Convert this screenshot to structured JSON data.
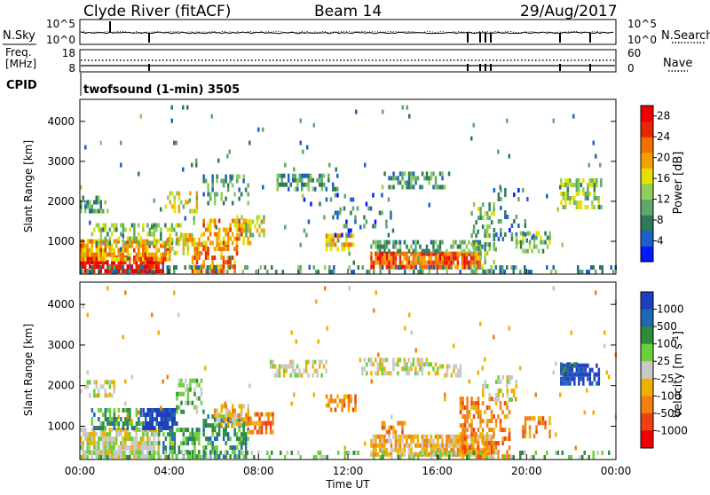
{
  "header": {
    "station": "Clyde River (fitACF)",
    "beam": "Beam 14",
    "date": "29/Aug/2017"
  },
  "noise_panel": {
    "left_label": "N.Sky",
    "left_top": "10^5",
    "left_bottom": "10^0",
    "right_top": "10^5",
    "right_bottom": "10^0",
    "right_label": "N.Search"
  },
  "freq_panel": {
    "left_label_1": "Freq.",
    "left_label_2": "[MHz]",
    "left_top": "18",
    "left_bottom": "8",
    "right_top": "60",
    "right_bottom": "0",
    "right_label": "Nave"
  },
  "cpid_panel": {
    "label": "CPID",
    "mode": "twofsound (1-min) 3505"
  },
  "colors": {
    "power_scale": [
      "#0018ff",
      "#1e5fc8",
      "#2f7a58",
      "#5ea86a",
      "#8fce58",
      "#e6e000",
      "#f6a000",
      "#f07000",
      "#e52800",
      "#ee0000"
    ],
    "velocity_scale": [
      "#1f3fbf",
      "#1f68b0",
      "#2e8a3c",
      "#6ad03a",
      "#c8c8c8",
      "#f0b000",
      "#f08010",
      "#f04010",
      "#ee0000"
    ]
  },
  "chart_data": [
    {
      "type": "heatmap",
      "name": "power",
      "ylabel": "Slant Range [km]",
      "ylim": [
        180,
        4550
      ],
      "yticks": [
        "1000",
        "2000",
        "3000",
        "4000"
      ],
      "xlim": [
        0,
        24
      ],
      "colorbar": {
        "label": "Power [dB]",
        "ticks": [
          "4",
          "8",
          "12",
          "16",
          "20",
          "24",
          "28"
        ],
        "range": [
          0,
          30
        ]
      },
      "regions": [
        {
          "t0": 0.0,
          "t1": 3.7,
          "r0": 200,
          "r1": 550,
          "v": 28,
          "d": 0.85
        },
        {
          "t0": 0.0,
          "t1": 4.0,
          "r0": 500,
          "r1": 1000,
          "v": 20,
          "d": 0.75
        },
        {
          "t0": 0.5,
          "t1": 4.5,
          "r0": 900,
          "r1": 1400,
          "v": 12,
          "d": 0.45
        },
        {
          "t0": 0.0,
          "t1": 1.2,
          "r0": 1700,
          "r1": 2100,
          "v": 10,
          "d": 0.5
        },
        {
          "t0": 3.8,
          "t1": 5.4,
          "r0": 650,
          "r1": 1100,
          "v": 18,
          "d": 0.6
        },
        {
          "t0": 5.0,
          "t1": 7.0,
          "r0": 200,
          "r1": 900,
          "v": 22,
          "d": 0.55
        },
        {
          "t0": 5.5,
          "t1": 7.6,
          "r0": 900,
          "r1": 1500,
          "v": 20,
          "d": 0.55
        },
        {
          "t0": 7.0,
          "t1": 8.2,
          "r0": 1100,
          "r1": 1600,
          "v": 15,
          "d": 0.5
        },
        {
          "t0": 3.8,
          "t1": 5.2,
          "r0": 1700,
          "r1": 2200,
          "v": 16,
          "d": 0.4
        },
        {
          "t0": 5.5,
          "t1": 7.5,
          "r0": 1900,
          "r1": 2600,
          "v": 10,
          "d": 0.3
        },
        {
          "t0": 8.8,
          "t1": 11.5,
          "r0": 2250,
          "r1": 2600,
          "v": 9,
          "d": 0.5
        },
        {
          "t0": 11.0,
          "t1": 12.2,
          "r0": 750,
          "r1": 1100,
          "v": 18,
          "d": 0.55
        },
        {
          "t0": 10.0,
          "t1": 14.0,
          "r0": 1100,
          "r1": 2200,
          "v": 6,
          "d": 0.12
        },
        {
          "t0": 13.5,
          "t1": 16.5,
          "r0": 2300,
          "r1": 2700,
          "v": 9,
          "d": 0.45
        },
        {
          "t0": 13.0,
          "t1": 17.9,
          "r0": 300,
          "r1": 700,
          "v": 24,
          "d": 0.85
        },
        {
          "t0": 13.0,
          "t1": 18.0,
          "r0": 700,
          "r1": 1000,
          "v": 10,
          "d": 0.5
        },
        {
          "t0": 17.5,
          "t1": 18.5,
          "r0": 200,
          "r1": 1900,
          "v": 12,
          "d": 0.35
        },
        {
          "t0": 18.5,
          "t1": 20.0,
          "r0": 1000,
          "r1": 2300,
          "v": 6,
          "d": 0.25
        },
        {
          "t0": 19.5,
          "t1": 21.0,
          "r0": 700,
          "r1": 1200,
          "v": 12,
          "d": 0.5
        },
        {
          "t0": 21.5,
          "t1": 23.3,
          "r0": 1800,
          "r1": 2500,
          "v": 13,
          "d": 0.6
        },
        {
          "t0": 0.0,
          "t1": 24.0,
          "r0": 180,
          "r1": 330,
          "v": 8,
          "d": 0.3
        },
        {
          "t0": 0.0,
          "t1": 24.0,
          "r0": 300,
          "r1": 4400,
          "v": 8,
          "d": 0.01
        }
      ]
    },
    {
      "type": "heatmap",
      "name": "velocity",
      "ylabel": "Slant Range [km]",
      "xlabel": "Time UT",
      "ylim": [
        180,
        4550
      ],
      "yticks": [
        "1000",
        "2000",
        "3000",
        "4000"
      ],
      "xlim": [
        0,
        24
      ],
      "xticks": [
        "00:00",
        "04:00",
        "08:00",
        "12:00",
        "16:00",
        "20:00",
        "00:00"
      ],
      "colorbar": {
        "label": "Velocity [m s^-1]",
        "ticks": [
          "1000",
          "500",
          "100",
          "25",
          "-25",
          "-100",
          "-500",
          "-1000"
        ]
      },
      "regions": [
        {
          "t0": 0.0,
          "t1": 3.5,
          "r0": 200,
          "r1": 900,
          "v": 4,
          "d": 0.8
        },
        {
          "t0": 0.0,
          "t1": 1.5,
          "r0": 1700,
          "r1": 2100,
          "v": 4,
          "d": 0.55
        },
        {
          "t0": 0.5,
          "t1": 2.8,
          "r0": 900,
          "r1": 1350,
          "v": 2,
          "d": 0.6
        },
        {
          "t0": 2.8,
          "t1": 4.3,
          "r0": 900,
          "r1": 1400,
          "v": 0,
          "d": 0.85
        },
        {
          "t0": 3.5,
          "t1": 5.3,
          "r0": 200,
          "r1": 900,
          "v": 2,
          "d": 0.55
        },
        {
          "t0": 4.3,
          "t1": 5.5,
          "r0": 1300,
          "r1": 2100,
          "v": 3,
          "d": 0.5
        },
        {
          "t0": 5.5,
          "t1": 7.5,
          "r0": 200,
          "r1": 1200,
          "v": 2,
          "d": 0.5
        },
        {
          "t0": 6.0,
          "t1": 7.5,
          "r0": 1000,
          "r1": 1500,
          "v": 5,
          "d": 0.6
        },
        {
          "t0": 7.5,
          "t1": 8.6,
          "r0": 800,
          "r1": 1300,
          "v": 6,
          "d": 0.6
        },
        {
          "t0": 8.5,
          "t1": 11.0,
          "r0": 2200,
          "r1": 2600,
          "v": 4,
          "d": 0.55
        },
        {
          "t0": 11.0,
          "t1": 12.3,
          "r0": 1350,
          "r1": 1750,
          "v": 6,
          "d": 0.6
        },
        {
          "t0": 12.5,
          "t1": 16.0,
          "r0": 2250,
          "r1": 2600,
          "v": 4,
          "d": 0.55
        },
        {
          "t0": 16.0,
          "t1": 17.0,
          "r0": 2200,
          "r1": 2500,
          "v": 4,
          "d": 0.5
        },
        {
          "t0": 13.0,
          "t1": 18.5,
          "r0": 250,
          "r1": 700,
          "v": 5,
          "d": 0.85
        },
        {
          "t0": 13.5,
          "t1": 14.5,
          "r0": 800,
          "r1": 1100,
          "v": 6,
          "d": 0.55
        },
        {
          "t0": 17.0,
          "t1": 19.2,
          "r0": 200,
          "r1": 1700,
          "v": 6,
          "d": 0.4
        },
        {
          "t0": 18.0,
          "t1": 19.5,
          "r0": 1600,
          "r1": 2200,
          "v": 4,
          "d": 0.35
        },
        {
          "t0": 19.8,
          "t1": 21.0,
          "r0": 700,
          "r1": 1200,
          "v": 6,
          "d": 0.55
        },
        {
          "t0": 21.5,
          "t1": 23.2,
          "r0": 2000,
          "r1": 2500,
          "v": 0,
          "d": 0.7
        },
        {
          "t0": 21.5,
          "t1": 22.2,
          "r0": 2250,
          "r1": 2550,
          "v": 1,
          "d": 0.7
        },
        {
          "t0": 0.0,
          "t1": 24.0,
          "r0": 180,
          "r1": 330,
          "v": 3,
          "d": 0.25
        },
        {
          "t0": 0.0,
          "t1": 24.0,
          "r0": 300,
          "r1": 4400,
          "v": 5,
          "d": 0.01
        }
      ]
    }
  ]
}
